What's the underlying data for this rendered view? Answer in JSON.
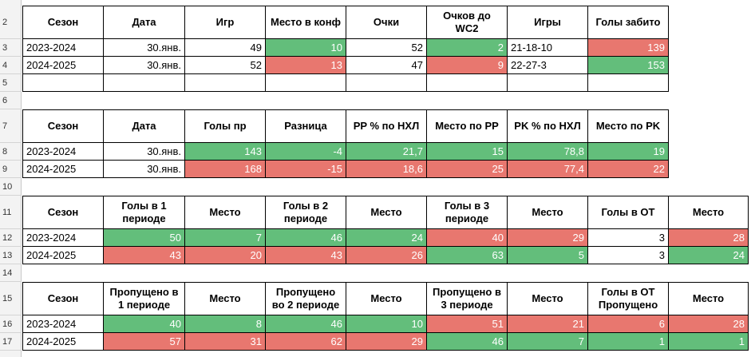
{
  "colors": {
    "green": "#63be7b",
    "red": "#e8776f"
  },
  "row_numbers": [
    "2",
    "3",
    "4",
    "5",
    "6",
    "7",
    "8",
    "9",
    "10",
    "11",
    "12",
    "13",
    "14",
    "15",
    "16",
    "17"
  ],
  "t1": {
    "headers": [
      "Сезон",
      "Дата",
      "Игр",
      "Место в конф",
      "Очки",
      "Очков до WC2",
      "Игры",
      "Голы забито"
    ],
    "rows": [
      [
        "2023-2024",
        "30.янв.",
        "49",
        "10",
        "52",
        "2",
        "21-18-10",
        "139"
      ],
      [
        "2024-2025",
        "30.янв.",
        "52",
        "13",
        "47",
        "9",
        "22-27-3",
        "153"
      ]
    ]
  },
  "t2": {
    "headers": [
      "Сезон",
      "Дата",
      "Голы пр",
      "Разница",
      "PP % по НХЛ",
      "Место по PP",
      "PK % по НХЛ",
      "Место по PK"
    ],
    "rows": [
      [
        "2023-2024",
        "30.янв.",
        "143",
        "-4",
        "21,7",
        "15",
        "78,8",
        "19"
      ],
      [
        "2024-2025",
        "30.янв.",
        "168",
        "-15",
        "18,6",
        "25",
        "77,4",
        "22"
      ]
    ]
  },
  "t3": {
    "headers": [
      "Сезон",
      "Голы в 1 периоде",
      "Место",
      "Голы в 2 периоде",
      "Место",
      "Голы в 3 периоде",
      "Место",
      "Голы в ОТ",
      "Место"
    ],
    "rows": [
      [
        "2023-2024",
        "50",
        "7",
        "46",
        "24",
        "40",
        "29",
        "3",
        "28"
      ],
      [
        "2024-2025",
        "43",
        "20",
        "43",
        "26",
        "63",
        "5",
        "3",
        "24"
      ]
    ]
  },
  "t4": {
    "headers": [
      "Сезон",
      "Пропущено в 1 периоде",
      "Место",
      "Пропущено во 2 периоде",
      "Место",
      "Пропущено в 3 периоде",
      "Место",
      "Голы в ОТ Пропущено",
      "Место"
    ],
    "rows": [
      [
        "2023-2024",
        "40",
        "8",
        "46",
        "10",
        "51",
        "21",
        "6",
        "28"
      ],
      [
        "2024-2025",
        "57",
        "31",
        "62",
        "29",
        "46",
        "7",
        "1",
        "1"
      ]
    ]
  }
}
